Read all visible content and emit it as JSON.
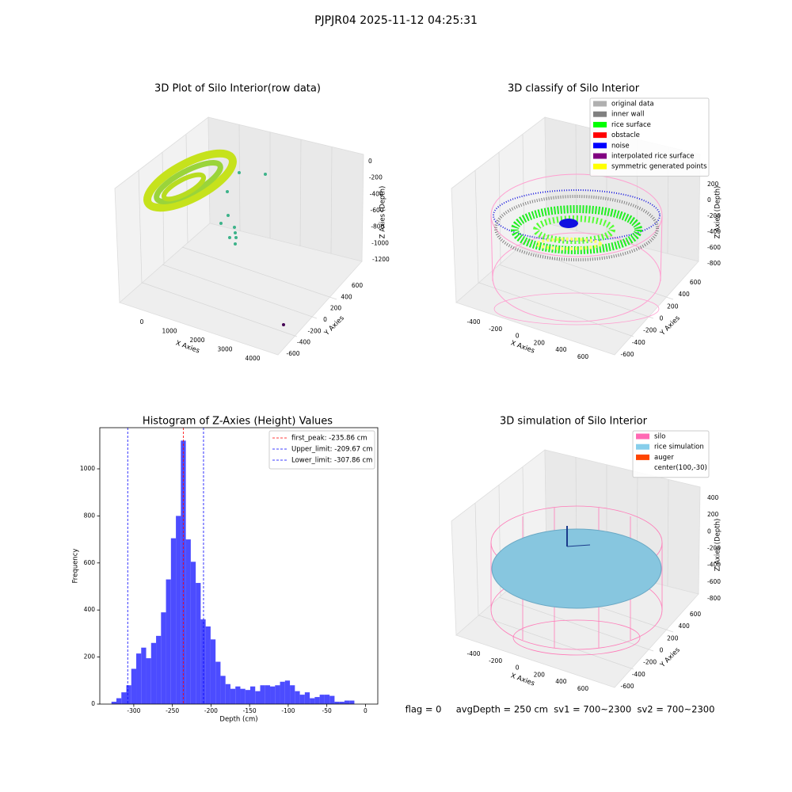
{
  "suptitle": "PJPJR04 2025-11-12 04:25:31",
  "chart_data": [
    {
      "type": "scatter3d",
      "title": "3D Plot of Silo Interior(row data)",
      "xlabel": "X Axies",
      "ylabel": "Y Axies",
      "zlabel": "Z Axies (Depth)",
      "xticks": [
        0,
        1000,
        2000,
        3000,
        4000
      ],
      "yticks": [
        -600,
        -400,
        -200,
        0,
        200,
        400,
        600
      ],
      "zticks": [
        0,
        -200,
        -400,
        -600,
        -800,
        -1000,
        -1200
      ]
    },
    {
      "type": "scatter3d",
      "title": "3D classify of Silo Interior",
      "xlabel": "X Axies",
      "ylabel": "Y Axies",
      "zlabel": "Z Axies (Depth)",
      "xticks": [
        -400,
        -200,
        0,
        200,
        400,
        600
      ],
      "yticks": [
        -600,
        -400,
        -200,
        0,
        200,
        400,
        600
      ],
      "zticks": [
        200,
        0,
        -200,
        -400,
        -600,
        -800
      ],
      "legend": [
        {
          "name": "original data",
          "color": "#b0b0b0"
        },
        {
          "name": "inner wall",
          "color": "#808080"
        },
        {
          "name": "rice surface",
          "color": "#00ff00"
        },
        {
          "name": "obstacle",
          "color": "#ff0000"
        },
        {
          "name": "noise",
          "color": "#0000ff"
        },
        {
          "name": "interpolated rice surface",
          "color": "#800080"
        },
        {
          "name": "symmetric generated points",
          "color": "#ffff00"
        }
      ]
    },
    {
      "type": "histogram",
      "title": "Histogram of Z-Axies (Height) Values",
      "xlabel": "Depth (cm)",
      "ylabel": "Frequency",
      "color": "#4c4cff",
      "bins": [
        -328.9,
        -322.48,
        -316.06,
        -309.64,
        -303.22,
        -296.8,
        -290.38,
        -283.96,
        -277.54,
        -271.12,
        -264.7,
        -258.28,
        -251.86,
        -245.44,
        -239.02,
        -232.6,
        -226.18,
        -219.76,
        -213.34,
        -206.92,
        -200.5,
        -194.08,
        -187.66,
        -181.24,
        -174.82,
        -168.4,
        -161.98,
        -155.56,
        -149.14,
        -142.72,
        -136.3,
        -129.88,
        -123.46,
        -117.04,
        -110.62,
        -104.2,
        -97.78,
        -91.36,
        -84.94,
        -78.52,
        -72.1,
        -65.68,
        -59.26,
        -52.84,
        -46.42,
        -40.0,
        -33.58,
        -27.16,
        -20.74,
        -14.32
      ],
      "values": [
        10,
        25,
        50,
        80,
        150,
        215,
        240,
        195,
        260,
        290,
        390,
        530,
        705,
        800,
        1120,
        700,
        605,
        515,
        360,
        330,
        275,
        180,
        120,
        85,
        65,
        75,
        65,
        60,
        75,
        55,
        80,
        80,
        75,
        80,
        95,
        100,
        80,
        55,
        40,
        50,
        25,
        30,
        40,
        40,
        35,
        10,
        10,
        15,
        15
      ],
      "xlim": [
        -344,
        16
      ],
      "ylim": [
        0,
        1175
      ],
      "xticks": [
        -300,
        -250,
        -200,
        -150,
        -100,
        -50,
        0
      ],
      "yticks": [
        0,
        200,
        400,
        600,
        800,
        1000
      ],
      "vlines": [
        {
          "label": "first_peak: -235.86 cm",
          "value": -235.86,
          "color": "#ff0000"
        },
        {
          "label": "Upper_limit: -209.67 cm",
          "value": -209.67,
          "color": "#0000ff"
        },
        {
          "label": "Lower_limit: -307.86 cm",
          "value": -307.86,
          "color": "#0000ff"
        }
      ],
      "legend_loc": "upper right"
    },
    {
      "type": "surface3d",
      "title": "3D simulation of Silo Interior",
      "xlabel": "X Axies",
      "ylabel": "Y Axies",
      "zlabel": "Z Axies (Depth)",
      "xticks": [
        -400,
        -200,
        0,
        200,
        400,
        600
      ],
      "yticks": [
        -600,
        -400,
        -200,
        0,
        200,
        400,
        600
      ],
      "zticks": [
        400,
        200,
        0,
        -200,
        -400,
        -600,
        -800
      ],
      "legend": [
        {
          "name": "silo",
          "color": "#ff69b4"
        },
        {
          "name": "rice simulation",
          "color": "#87ceeb"
        },
        {
          "name": "auger",
          "color": "#ff4500"
        },
        {
          "name": "center(100,-30)",
          "color": null
        }
      ],
      "annotation": "flag = 0     avgDepth = 250 cm  sv1 = 700~2300  sv2 = 700~2300"
    }
  ]
}
